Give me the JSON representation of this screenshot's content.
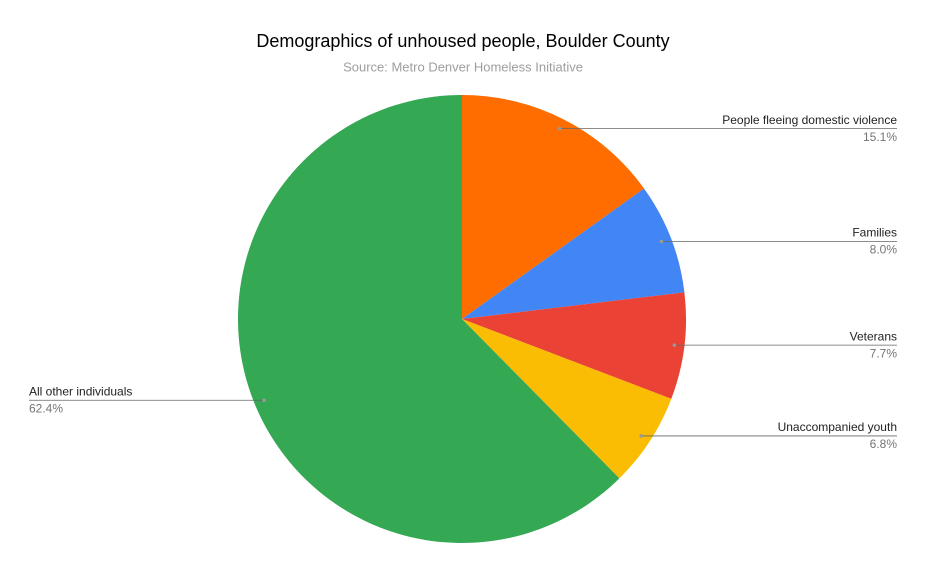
{
  "chart_data": {
    "type": "pie",
    "title": "Demographics of unhoused people, Boulder County",
    "subtitle": "Source: Metro Denver Homeless Initiative",
    "categories": [
      "People fleeing domestic violence",
      "Families",
      "Veterans",
      "Unaccompanied youth",
      "All other individuals"
    ],
    "values": [
      15.1,
      8.0,
      7.7,
      6.8,
      62.4
    ],
    "value_labels": [
      "15.1%",
      "8.0%",
      "7.7%",
      "6.8%",
      "62.4%"
    ],
    "colors": [
      "#ff6d01",
      "#4285f4",
      "#ea4335",
      "#fbbc04",
      "#34a853"
    ]
  }
}
